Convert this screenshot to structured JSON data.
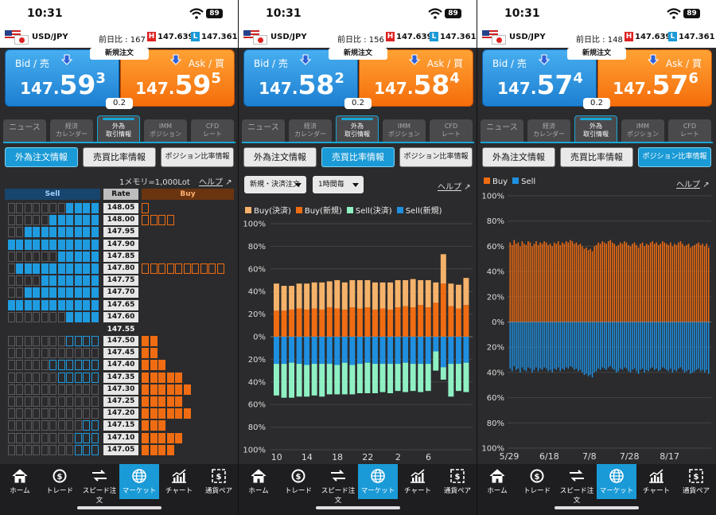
{
  "status": {
    "time": "10:31",
    "battery": "89"
  },
  "screens": [
    {
      "pair": "USD/JPY",
      "change": "前日比 : 167",
      "high": "147.639",
      "low": "147.361",
      "bid_label": "Bid / 売",
      "ask_label": "Ask / 買",
      "bid": {
        "a": "147.",
        "b": "59",
        "c": "3"
      },
      "ask": {
        "a": "147.",
        "b": "59",
        "c": "5"
      },
      "spread": "0.2"
    },
    {
      "pair": "USD/JPY",
      "change": "前日比 : 156",
      "high": "147.639",
      "low": "147.361",
      "bid_label": "Bid / 売",
      "ask_label": "Ask / 買",
      "bid": {
        "a": "147.",
        "b": "58",
        "c": "2"
      },
      "ask": {
        "a": "147.",
        "b": "58",
        "c": "4"
      },
      "spread": "0.2"
    },
    {
      "pair": "USD/JPY",
      "change": "前日比 : 148",
      "high": "147.639",
      "low": "147.361",
      "bid_label": "Bid / 売",
      "ask_label": "Ask / 買",
      "bid": {
        "a": "147.",
        "b": "57",
        "c": "4"
      },
      "ask": {
        "a": "147.",
        "b": "57",
        "c": "6"
      },
      "spread": "0.2"
    }
  ],
  "labels": {
    "new_order": "新規注文",
    "high_badge": "H",
    "low_badge": "L",
    "help": "ヘルプ"
  },
  "tabs": [
    "ニュース",
    "経済\nカレンダー",
    "外為\n取引情報",
    "IMM\nポジション",
    "CFD\nレート"
  ],
  "subtabs": [
    "外為注文情報",
    "売買比率情報",
    "ポジション比率情報"
  ],
  "orderbook": {
    "memo": "1メモリ=1,000Lot",
    "sell_label": "Sell",
    "rate_label": "Rate",
    "buy_label": "Buy",
    "upper_rates": [
      "148.05",
      "148.00",
      "147.95",
      "147.90",
      "147.85",
      "147.80",
      "147.75",
      "147.70",
      "147.65",
      "147.60"
    ],
    "mid_rate": "147.55",
    "lower_rates": [
      "147.50",
      "147.45",
      "147.40",
      "147.35",
      "147.30",
      "147.25",
      "147.20",
      "147.15",
      "147.10",
      "147.05"
    ],
    "upper_sell": [
      4,
      6,
      9,
      13,
      5,
      10,
      7,
      9,
      13,
      4
    ],
    "upper_buy_outline": [
      1,
      4,
      0,
      0,
      0,
      10,
      0,
      0,
      0,
      0
    ],
    "lower_sell_outline": [
      4,
      0,
      6,
      5,
      0,
      0,
      0,
      2,
      3,
      3
    ],
    "lower_buy": [
      2,
      2,
      3,
      5,
      6,
      5,
      6,
      3,
      5,
      4
    ]
  },
  "ratio_chart": {
    "controls": {
      "type_select": "新規・決済注文",
      "period_select": "1時間毎"
    },
    "chart_data": {
      "type": "bar",
      "legend": [
        "Buy(決済)",
        "Buy(新規)",
        "Sell(決済)",
        "Sell(新規)"
      ],
      "colors": {
        "buy_close": "#f5b26a",
        "buy_new": "#f06c12",
        "sell_close": "#8ff0c4",
        "sell_new": "#1f8fe0"
      },
      "y_ticks": [
        "100%",
        "80%",
        "60%",
        "40%",
        "20%",
        "0%",
        "20%",
        "40%",
        "60%",
        "80%",
        "100%"
      ],
      "x_ticks": [
        "10",
        "14",
        "18",
        "22",
        "2",
        "6"
      ],
      "ylim": [
        -100,
        100
      ],
      "buy_new": [
        23,
        23,
        24,
        25,
        24,
        25,
        24,
        26,
        25,
        24,
        26,
        25,
        26,
        24,
        25,
        24,
        26,
        27,
        26,
        28,
        26,
        30,
        47,
        27,
        25,
        28
      ],
      "buy_close": [
        24,
        22,
        21,
        22,
        23,
        23,
        24,
        23,
        25,
        24,
        24,
        25,
        24,
        24,
        23,
        24,
        24,
        23,
        25,
        22,
        24,
        18,
        26,
        20,
        21,
        24
      ],
      "sell_new": [
        -24,
        -24,
        -23,
        -24,
        -25,
        -24,
        -24,
        -24,
        -25,
        -23,
        -25,
        -24,
        -23,
        -24,
        -24,
        -24,
        -24,
        -23,
        -24,
        -24,
        -24,
        -13,
        -27,
        -24,
        -24,
        -23
      ],
      "sell_close": [
        -28,
        -30,
        -31,
        -29,
        -28,
        -28,
        -29,
        -27,
        -26,
        -28,
        -26,
        -26,
        -27,
        -26,
        -25,
        -26,
        -24,
        -26,
        -24,
        -25,
        -24,
        -17,
        -11,
        -29,
        -24,
        -26
      ]
    }
  },
  "position_chart": {
    "chart_data": {
      "type": "bar",
      "legend": [
        "Buy",
        "Sell"
      ],
      "colors": {
        "buy": "#f06c12",
        "sell": "#1f8fe0"
      },
      "y_ticks": [
        "100%",
        "80%",
        "60%",
        "40%",
        "20%",
        "0%",
        "20%",
        "40%",
        "60%",
        "80%",
        "100%"
      ],
      "x_ticks": [
        "5/29",
        "6/18",
        "7/8",
        "7/28",
        "8/17"
      ],
      "ylim": [
        -100,
        100
      ],
      "buy": [
        63,
        61,
        65,
        62,
        63,
        60,
        64,
        62,
        61,
        64,
        63,
        60,
        62,
        64,
        61,
        63,
        62,
        64,
        63,
        61,
        62,
        60,
        63,
        62,
        64,
        61,
        63,
        62,
        64,
        63,
        65,
        64,
        62,
        63,
        61,
        62,
        60,
        58,
        59,
        57,
        58,
        56,
        60,
        61,
        63,
        62,
        64,
        63,
        62,
        64,
        65,
        63,
        62,
        60,
        61,
        63,
        62,
        64,
        63,
        61,
        60,
        62,
        63,
        61,
        59,
        62,
        63,
        60,
        62,
        61,
        63,
        64,
        62,
        63,
        61,
        62,
        64,
        63,
        62,
        61,
        63,
        60,
        62,
        61,
        63,
        64,
        62,
        60,
        61,
        62,
        59,
        60,
        61,
        62,
        63,
        61,
        62,
        60,
        62,
        59
      ],
      "sell": [
        -37,
        -39,
        -35,
        -38,
        -37,
        -40,
        -36,
        -38,
        -39,
        -36,
        -37,
        -40,
        -38,
        -36,
        -39,
        -37,
        -38,
        -36,
        -37,
        -39,
        -38,
        -40,
        -37,
        -38,
        -36,
        -39,
        -37,
        -38,
        -36,
        -37,
        -35,
        -36,
        -38,
        -37,
        -39,
        -38,
        -40,
        -42,
        -41,
        -43,
        -42,
        -44,
        -40,
        -39,
        -37,
        -38,
        -36,
        -37,
        -38,
        -36,
        -35,
        -37,
        -38,
        -40,
        -39,
        -37,
        -38,
        -36,
        -37,
        -39,
        -40,
        -38,
        -37,
        -39,
        -41,
        -38,
        -37,
        -40,
        -38,
        -39,
        -37,
        -36,
        -38,
        -37,
        -39,
        -38,
        -36,
        -37,
        -38,
        -39,
        -37,
        -40,
        -38,
        -39,
        -37,
        -36,
        -38,
        -40,
        -39,
        -38,
        -41,
        -40,
        -39,
        -38,
        -37,
        -39,
        -38,
        -40,
        -38,
        -41
      ]
    }
  },
  "nav": [
    "ホーム",
    "トレード",
    "スピード注文",
    "マーケット",
    "チャート",
    "通貨ペア"
  ]
}
